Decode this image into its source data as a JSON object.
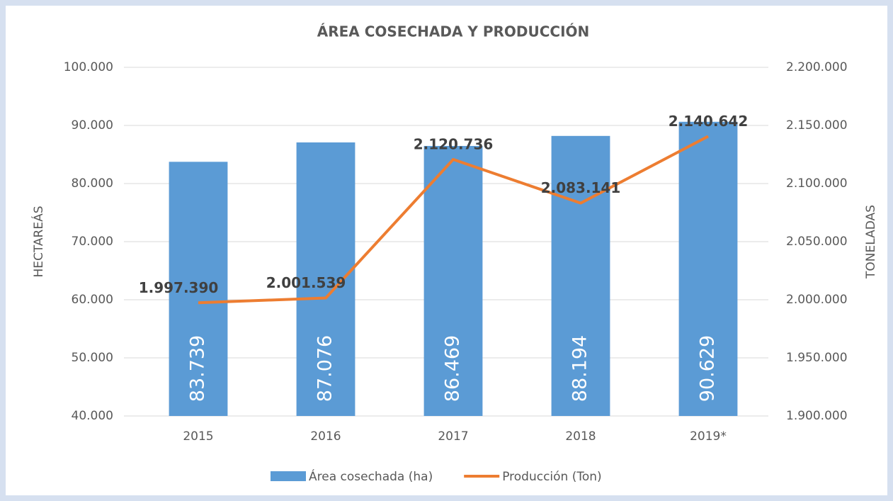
{
  "chart_data": {
    "type": "bar_line",
    "title": "ÁREA COSECHADA Y PRODUCCIÓN",
    "y_label": "HECTAREÁS",
    "y2_label": "TONELADAS",
    "categories": [
      "2015",
      "2016",
      "2017",
      "2018",
      "2019*"
    ],
    "series": [
      {
        "name": "Área cosechada (ha)",
        "type": "bar",
        "color": "#5b9bd5",
        "axis": "y",
        "values": [
          83739,
          87076,
          86469,
          88194,
          90629
        ],
        "value_labels": [
          "83.739",
          "87.076",
          "86.469",
          "88.194",
          "90.629"
        ]
      },
      {
        "name": "Producción (Ton)",
        "type": "line",
        "color": "#ed7d31",
        "axis": "y2",
        "values": [
          1997390,
          2001539,
          2120736,
          2083141,
          2140642
        ],
        "value_labels": [
          "1.997.390",
          "2.001.539",
          "2.120.736",
          "2.083.141",
          "2.140.642"
        ]
      }
    ],
    "ylim": [
      40000,
      100000
    ],
    "yticks": [
      {
        "value": 40000,
        "label": "40.000"
      },
      {
        "value": 50000,
        "label": "50.000"
      },
      {
        "value": 60000,
        "label": "60.000"
      },
      {
        "value": 70000,
        "label": "70.000"
      },
      {
        "value": 80000,
        "label": "80.000"
      },
      {
        "value": 90000,
        "label": "90.000"
      },
      {
        "value": 100000,
        "label": "100.000"
      }
    ],
    "y2lim": [
      1900000,
      2200000
    ],
    "y2ticks": [
      {
        "value": 1900000,
        "label": "1.900.000"
      },
      {
        "value": 1950000,
        "label": "1.950.000"
      },
      {
        "value": 2000000,
        "label": "2.000.000"
      },
      {
        "value": 2050000,
        "label": "2.050.000"
      },
      {
        "value": 2100000,
        "label": "2.100.000"
      },
      {
        "value": 2150000,
        "label": "2.150.000"
      },
      {
        "value": 2200000,
        "label": "2.200.000"
      }
    ],
    "grid": true,
    "legend": "bottom"
  }
}
